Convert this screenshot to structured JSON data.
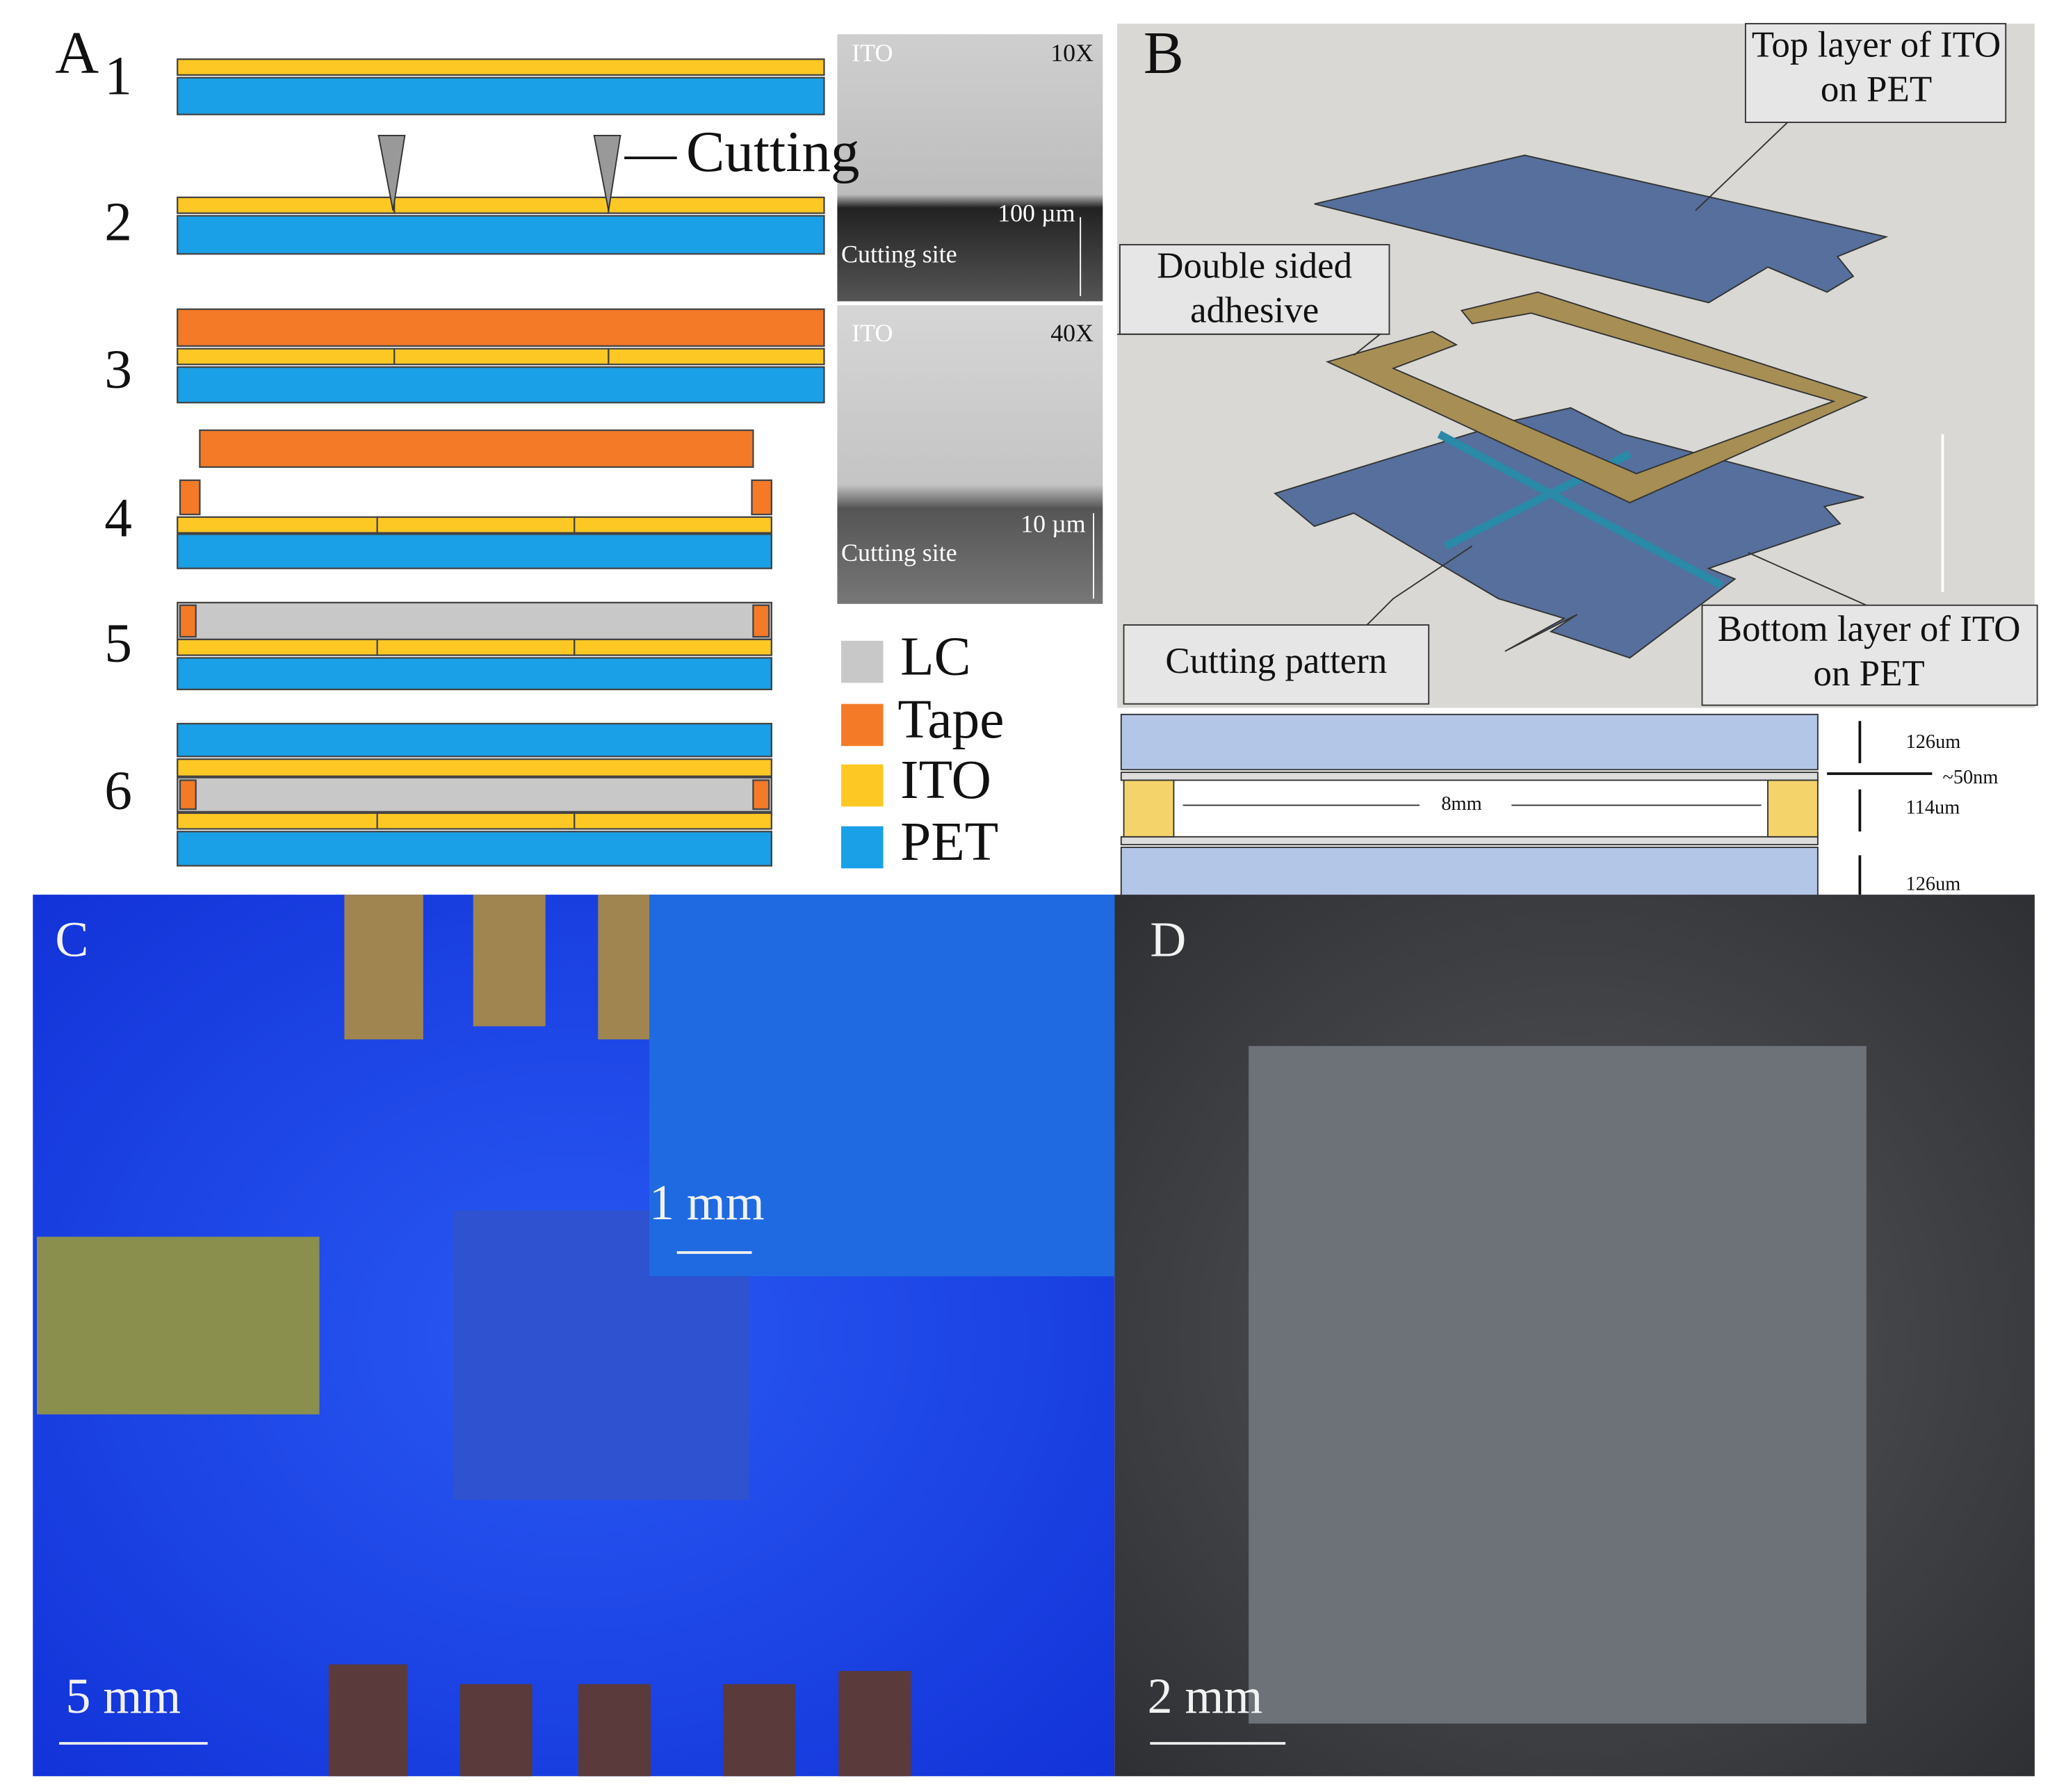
{
  "panel_a": {
    "label": "A",
    "steps": [
      "1",
      "2",
      "3",
      "4",
      "5",
      "6"
    ],
    "cutting": "Cutting",
    "micrographs": [
      {
        "material": "ITO",
        "magnification": "10X",
        "scale": "100 µm",
        "site": "Cutting site"
      },
      {
        "material": "ITO",
        "magnification": "40X",
        "scale": "10 µm",
        "site": "Cutting site"
      }
    ],
    "legend": [
      "LC",
      "Tape",
      "ITO",
      "PET"
    ]
  },
  "panel_b": {
    "label": "B",
    "top_layer": "Top layer of ITO on PET",
    "adhesive": "Double sided adhesive",
    "cutting_pattern": "Cutting pattern",
    "bottom_layer": "Bottom layer of ITO on PET",
    "cross_section": {
      "top_thickness": "126um",
      "ito_thickness": "~50nm",
      "width": "8mm",
      "gap": "114um",
      "bottom_thickness": "126um"
    }
  },
  "panel_c": {
    "label": "C",
    "inset_scale": "1 mm",
    "scale": "5 mm"
  },
  "panel_d": {
    "label": "D",
    "scale": "2 mm"
  }
}
